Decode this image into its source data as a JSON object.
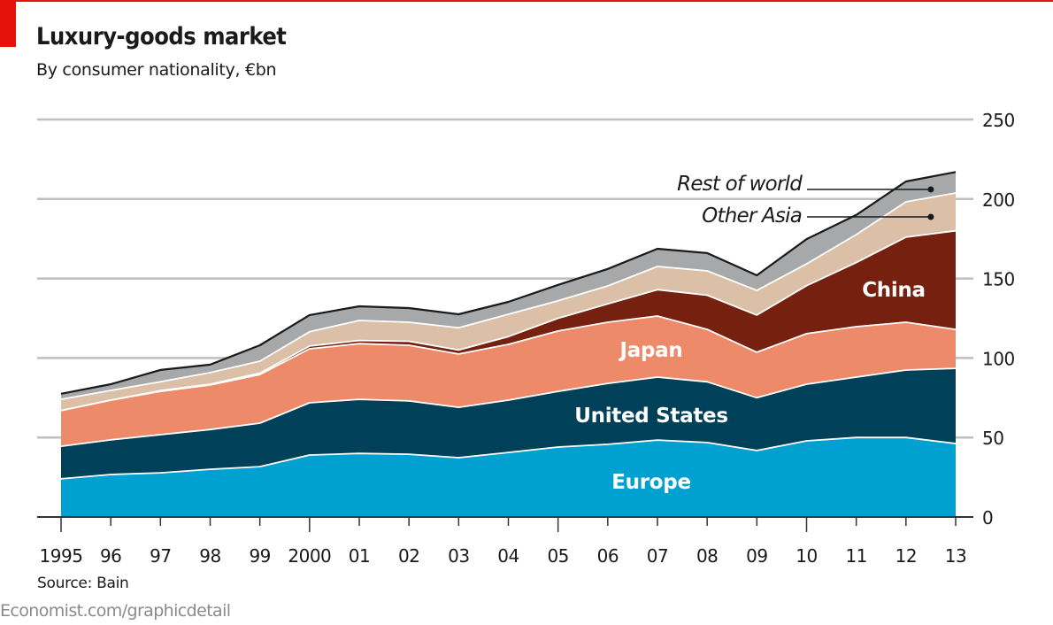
{
  "header": {
    "title": "Luxury-goods market",
    "subtitle": "By consumer nationality, €bn"
  },
  "footer": {
    "source": "Source: Bain",
    "credit": "Economist.com/graphicdetail"
  },
  "colors": {
    "brand_red": "#e3120b",
    "europe": "#00a0d0",
    "united_states": "#004059",
    "japan": "#ec8a6a",
    "china": "#76200f",
    "other_asia": "#dbbfa6",
    "rest_of_world": "#a7a8a9",
    "gridline": "#bfbfbf",
    "axis": "#333333"
  },
  "chart_data": {
    "type": "area",
    "stacked": true,
    "title": "Luxury-goods market",
    "subtitle": "By consumer nationality, €bn",
    "xlabel": "",
    "ylabel": "€bn",
    "x": [
      1995,
      1996,
      1997,
      1998,
      1999,
      2000,
      2001,
      2002,
      2003,
      2004,
      2005,
      2006,
      2007,
      2008,
      2009,
      2010,
      2011,
      2012,
      2013
    ],
    "x_tick_labels": [
      "1995",
      "96",
      "97",
      "98",
      "99",
      "2000",
      "01",
      "02",
      "03",
      "04",
      "05",
      "06",
      "07",
      "08",
      "09",
      "10",
      "11",
      "12",
      "13"
    ],
    "y_ticks": [
      0,
      50,
      100,
      150,
      200,
      250
    ],
    "ylim": [
      0,
      250
    ],
    "grid": true,
    "y_axis_side": "right",
    "series": [
      {
        "name": "Europe",
        "label": "Europe",
        "color_key": "europe",
        "values": [
          24,
          26.7,
          27.8,
          30,
          31.7,
          39,
          40,
          39.5,
          37.3,
          40.6,
          44,
          45.7,
          48.4,
          46.8,
          41.8,
          47.9,
          50,
          50,
          46.2
        ]
      },
      {
        "name": "United States",
        "label": "United States",
        "color_key": "united_states",
        "values": [
          20.5,
          21.8,
          24,
          25,
          27.3,
          32.8,
          34,
          33.5,
          31.7,
          32.9,
          35,
          38.3,
          39.6,
          38.2,
          33.2,
          35.6,
          38,
          42.4,
          47.3
        ]
      },
      {
        "name": "Japan",
        "label": "Japan",
        "color_key": "japan",
        "values": [
          22.5,
          25,
          27.2,
          28,
          30.6,
          34,
          35,
          35,
          33.5,
          35.1,
          38,
          38.5,
          38.4,
          33,
          28.6,
          31.8,
          31.7,
          30.1,
          24.5
        ]
      },
      {
        "name": "China",
        "label": "China",
        "color_key": "china",
        "values": [
          0,
          0,
          0.5,
          0.5,
          0.9,
          1.7,
          2,
          2.5,
          2.5,
          4.9,
          8,
          11.5,
          16.6,
          21.5,
          23.4,
          30.2,
          40.3,
          53.5,
          62
        ]
      },
      {
        "name": "Other Asia",
        "label": "Other Asia",
        "color_key": "other_asia",
        "values": [
          7,
          6.1,
          5.5,
          7.3,
          7.5,
          9,
          12.6,
          12,
          14,
          14,
          11,
          11.3,
          14.6,
          15.3,
          15.5,
          13.7,
          17.6,
          22.2,
          23.8
        ]
      },
      {
        "name": "Rest of world",
        "label": "Rest of world",
        "color_key": "rest_of_world",
        "values": [
          3.5,
          3.9,
          7.5,
          5,
          10,
          10.5,
          8.9,
          8.9,
          8.5,
          7.8,
          10,
          10.7,
          11.1,
          11.2,
          9.5,
          15.6,
          12.4,
          12.8,
          13.2
        ]
      }
    ],
    "totals": [
      77.5,
      83.5,
      92.5,
      95.8,
      108,
      127,
      132.5,
      131.4,
      127.5,
      135.3,
      146,
      156,
      168.7,
      166,
      152,
      174.8,
      190,
      211,
      217
    ],
    "annotations": [
      {
        "text": "Rest of world",
        "style": "italic callout with leader line",
        "series": "Rest of world"
      },
      {
        "text": "Other Asia",
        "style": "italic callout with leader line",
        "series": "Other Asia"
      }
    ],
    "in_area_labels": [
      "Europe",
      "United States",
      "Japan",
      "China"
    ]
  }
}
